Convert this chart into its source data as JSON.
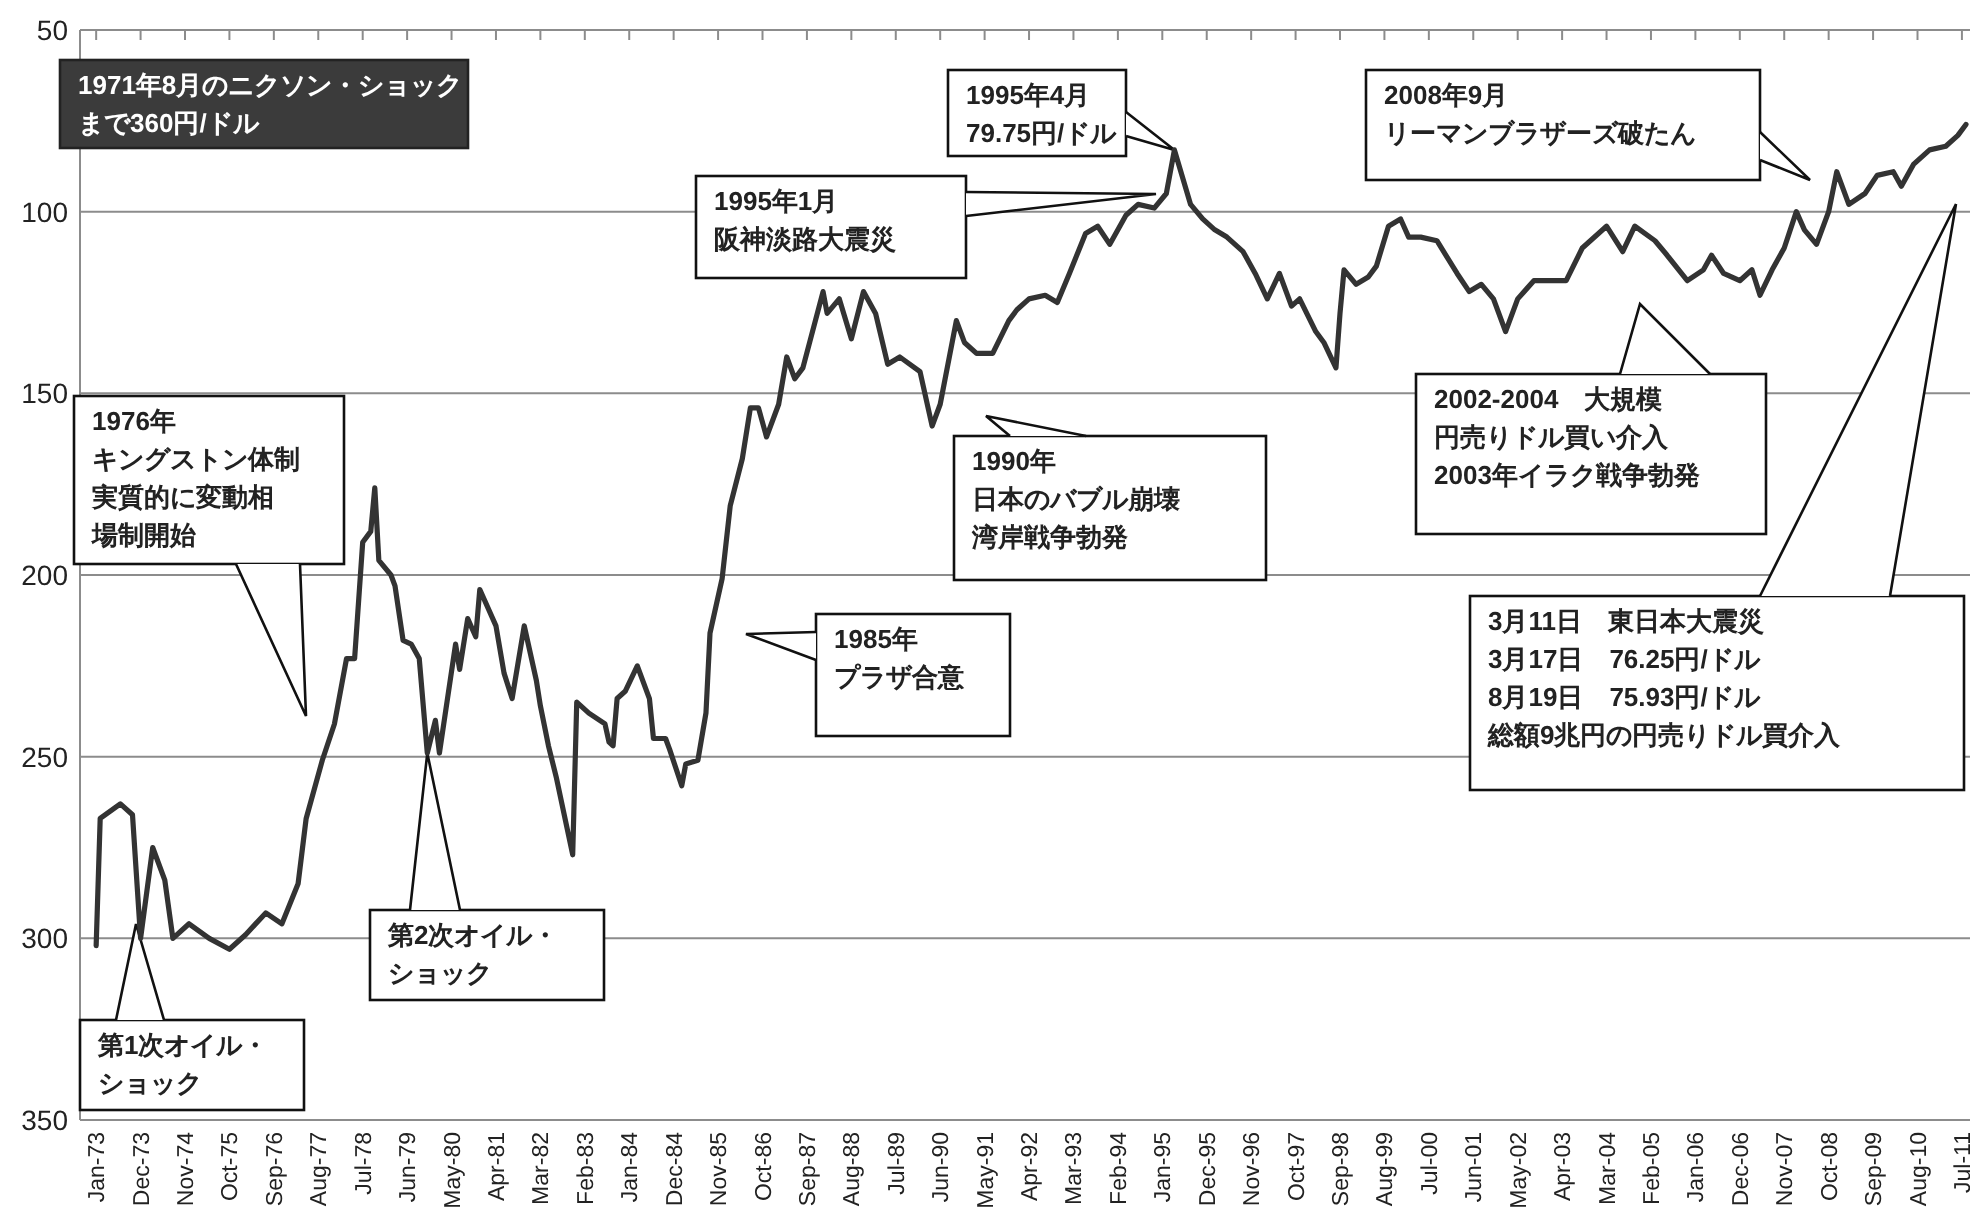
{
  "chart_data": {
    "type": "line",
    "x": [
      "1973-01",
      "1973-02",
      "1973-07",
      "1973-10",
      "1973-12",
      "1974-03",
      "1974-06",
      "1974-08",
      "1974-12",
      "1975-05",
      "1975-10",
      "1976-02",
      "1976-07",
      "1976-11",
      "1977-03",
      "1977-05",
      "1977-09",
      "1977-12",
      "1978-03",
      "1978-05",
      "1978-07",
      "1978-09",
      "1978-10",
      "1978-11",
      "1979-02",
      "1979-03",
      "1979-05",
      "1979-07",
      "1979-09",
      "1979-11",
      "1980-01",
      "1980-02",
      "1980-06",
      "1980-07",
      "1980-09",
      "1980-11",
      "1980-12",
      "1981-04",
      "1981-06",
      "1981-08",
      "1981-11",
      "1982-02",
      "1982-03",
      "1982-05",
      "1982-07",
      "1982-11",
      "1982-12",
      "1983-03",
      "1983-07",
      "1983-08",
      "1983-09",
      "1983-10",
      "1983-12",
      "1984-03",
      "1984-06",
      "1984-07",
      "1984-10",
      "1984-11",
      "1985-02",
      "1985-03",
      "1985-06",
      "1985-08",
      "1985-09",
      "1985-12",
      "1986-02",
      "1986-05",
      "1986-07",
      "1986-09",
      "1986-11",
      "1987-02",
      "1987-04",
      "1987-06",
      "1987-08",
      "1988-01",
      "1988-02",
      "1988-05",
      "1988-08",
      "1988-11",
      "1989-02",
      "1989-05",
      "1989-08",
      "1990-01",
      "1990-04",
      "1990-06",
      "1990-10",
      "1990-12",
      "1991-03",
      "1991-07",
      "1991-11",
      "1992-01",
      "1992-04",
      "1992-08",
      "1992-11",
      "1993-02",
      "1993-06",
      "1993-09",
      "1993-12",
      "1994-04",
      "1994-07",
      "1994-11",
      "1995-02",
      "1995-04",
      "1995-08",
      "1995-11",
      "1996-02",
      "1996-05",
      "1996-09",
      "1996-12",
      "1997-03",
      "1997-06",
      "1997-09",
      "1997-11",
      "1998-03",
      "1998-05",
      "1998-08",
      "1998-09",
      "1998-10",
      "1999-01",
      "1999-04",
      "1999-06",
      "1999-09",
      "1999-12",
      "2000-02",
      "2000-05",
      "2000-09",
      "2001-02",
      "2001-05",
      "2001-08",
      "2001-11",
      "2002-02",
      "2002-05",
      "2002-09",
      "2003-01",
      "2003-05",
      "2003-09",
      "2004-03",
      "2004-07",
      "2004-10",
      "2005-03",
      "2005-06",
      "2005-11",
      "2006-03",
      "2006-05",
      "2006-08",
      "2006-12",
      "2007-03",
      "2007-05",
      "2007-08",
      "2007-11",
      "2008-02",
      "2008-04",
      "2008-07",
      "2008-10",
      "2008-12",
      "2009-03",
      "2009-07",
      "2009-10",
      "2010-02",
      "2010-04",
      "2010-07",
      "2010-11",
      "2011-03",
      "2011-06",
      "2011-08"
    ],
    "series": [
      {
        "color": "#333333",
        "values": [
          302,
          267,
          263,
          266,
          300,
          275,
          284,
          300,
          296,
          300,
          303,
          299,
          293,
          296,
          285,
          267,
          251,
          241,
          223,
          223,
          191,
          188,
          176,
          196,
          200,
          203,
          218,
          219,
          223,
          249,
          240,
          249,
          219,
          226,
          212,
          217,
          204,
          214,
          227,
          234,
          214,
          229,
          236,
          247,
          256,
          277,
          235,
          238,
          241,
          246,
          247,
          234,
          232,
          225,
          234,
          245,
          245,
          248,
          258,
          252,
          251,
          238,
          216,
          201,
          181,
          168,
          154,
          154,
          162,
          153,
          140,
          146,
          143,
          122,
          128,
          124,
          135,
          122,
          128,
          142,
          140,
          144,
          159,
          153,
          130,
          136,
          139,
          139,
          130,
          127,
          124,
          123,
          125,
          117,
          106,
          104,
          109,
          101,
          98,
          99,
          95,
          83,
          98,
          102,
          105,
          107,
          111,
          117,
          124,
          117,
          126,
          124,
          133,
          136,
          143,
          128,
          116,
          120,
          118,
          115,
          104,
          102,
          107,
          107,
          108,
          117,
          122,
          120,
          124,
          133,
          124,
          119,
          119,
          119,
          110,
          104,
          111,
          104,
          108,
          112,
          119,
          116,
          112,
          117,
          119,
          116,
          123,
          116,
          110,
          100,
          105,
          109,
          100,
          89,
          98,
          95,
          90,
          89,
          93,
          87,
          83,
          82,
          79,
          76
        ]
      }
    ],
    "xlim": [
      "1972-09",
      "2011-09"
    ],
    "xticks": [
      {
        "value": "1973-01",
        "label": "Jan-73"
      },
      {
        "value": "1973-12",
        "label": "Dec-73"
      },
      {
        "value": "1974-11",
        "label": "Nov-74"
      },
      {
        "value": "1975-10",
        "label": "Oct-75"
      },
      {
        "value": "1976-09",
        "label": "Sep-76"
      },
      {
        "value": "1977-08",
        "label": "Aug-77"
      },
      {
        "value": "1978-07",
        "label": "Jul-78"
      },
      {
        "value": "1979-06",
        "label": "Jun-79"
      },
      {
        "value": "1980-05",
        "label": "May-80"
      },
      {
        "value": "1981-04",
        "label": "Apr-81"
      },
      {
        "value": "1982-03",
        "label": "Mar-82"
      },
      {
        "value": "1983-02",
        "label": "Feb-83"
      },
      {
        "value": "1984-01",
        "label": "Jan-84"
      },
      {
        "value": "1984-12",
        "label": "Dec-84"
      },
      {
        "value": "1985-11",
        "label": "Nov-85"
      },
      {
        "value": "1986-10",
        "label": "Oct-86"
      },
      {
        "value": "1987-09",
        "label": "Sep-87"
      },
      {
        "value": "1988-08",
        "label": "Aug-88"
      },
      {
        "value": "1989-07",
        "label": "Jul-89"
      },
      {
        "value": "1990-06",
        "label": "Jun-90"
      },
      {
        "value": "1991-05",
        "label": "May-91"
      },
      {
        "value": "1992-04",
        "label": "Apr-92"
      },
      {
        "value": "1993-03",
        "label": "Mar-93"
      },
      {
        "value": "1994-02",
        "label": "Feb-94"
      },
      {
        "value": "1995-01",
        "label": "Jan-95"
      },
      {
        "value": "1995-12",
        "label": "Dec-95"
      },
      {
        "value": "1996-11",
        "label": "Nov-96"
      },
      {
        "value": "1997-10",
        "label": "Oct-97"
      },
      {
        "value": "1998-09",
        "label": "Sep-98"
      },
      {
        "value": "1999-08",
        "label": "Aug-99"
      },
      {
        "value": "2000-07",
        "label": "Jul-00"
      },
      {
        "value": "2001-06",
        "label": "Jun-01"
      },
      {
        "value": "2002-05",
        "label": "May-02"
      },
      {
        "value": "2003-04",
        "label": "Apr-03"
      },
      {
        "value": "2004-03",
        "label": "Mar-04"
      },
      {
        "value": "2005-02",
        "label": "Feb-05"
      },
      {
        "value": "2006-01",
        "label": "Jan-06"
      },
      {
        "value": "2006-12",
        "label": "Dec-06"
      },
      {
        "value": "2007-11",
        "label": "Nov-07"
      },
      {
        "value": "2008-10",
        "label": "Oct-08"
      },
      {
        "value": "2009-09",
        "label": "Sep-09"
      },
      {
        "value": "2010-08",
        "label": "Aug-10"
      },
      {
        "value": "2011-07",
        "label": "Jul-11"
      }
    ],
    "ylim": [
      350,
      50
    ],
    "yticks": [
      50,
      100,
      150,
      200,
      250,
      300,
      350
    ],
    "grid": "y",
    "marker": "none",
    "line_style": "solid",
    "annotations": [
      "1971年8月のニクソン・ショックまで360円/ドル",
      {
        "text": "1995年4月79.75円/ドル",
        "x": "1995-04",
        "y": 83
      },
      "1995年1月阪神淡路大震災",
      "2008年9月リーマンブラザーズ破たん",
      "1976年キングストン体制実質的に変動相場制開始",
      "第1次オイル・ショック",
      {
        "text": "第2次オイル・ショック",
        "x": "1979-11",
        "y": 249
      },
      "1985年プラザ合意",
      "1990年日本のバブル崩壊湾岸戦争勃発",
      "2002-2004　大規模円売りドル買い介入2003年イラク戦争勃発",
      "3月11日　東日本大震災3月17日　76.25円/ドル8月19日　75.93円/ドル総額9兆円の円売りドル買介入"
    ]
  }
}
